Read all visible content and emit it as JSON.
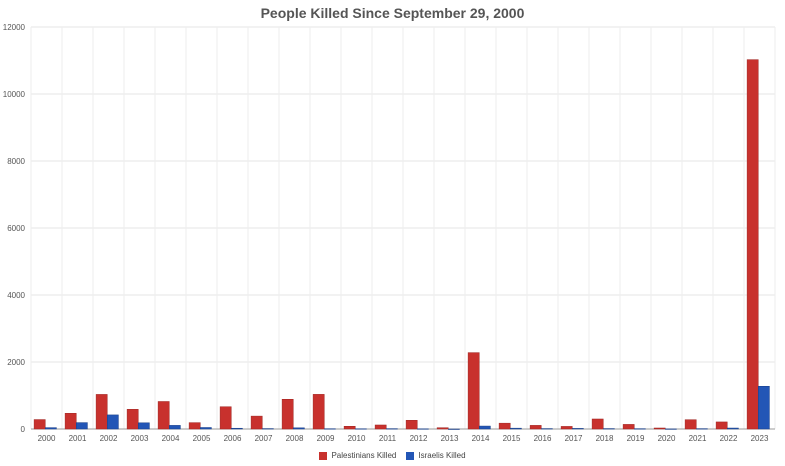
{
  "chart_data": {
    "type": "bar",
    "title": "People Killed Since September 29, 2000",
    "categories": [
      "2000",
      "2001",
      "2002",
      "2003",
      "2004",
      "2005",
      "2006",
      "2007",
      "2008",
      "2009",
      "2010",
      "2011",
      "2012",
      "2013",
      "2014",
      "2015",
      "2016",
      "2017",
      "2018",
      "2019",
      "2020",
      "2021",
      "2022",
      "2023"
    ],
    "series": [
      {
        "name": "Palestinians Killed",
        "color": "#c8312d",
        "values": [
          282,
          469,
          1032,
          588,
          821,
          190,
          665,
          385,
          888,
          1034,
          82,
          120,
          260,
          39,
          2280,
          174,
          108,
          77,
          299,
          137,
          30,
          278,
          211,
          11026
        ]
      },
      {
        "name": "Israelis Killed",
        "color": "#2356b6",
        "values": [
          41,
          191,
          421,
          185,
          108,
          45,
          23,
          13,
          35,
          9,
          8,
          11,
          6,
          0,
          88,
          25,
          13,
          18,
          13,
          10,
          3,
          11,
          29,
          1276
        ]
      }
    ],
    "yticks": [
      "0",
      "2000",
      "4000",
      "6000",
      "8000",
      "10000",
      "12000"
    ],
    "ylim": [
      0,
      12000
    ],
    "grid": true,
    "legend": "bottom"
  }
}
